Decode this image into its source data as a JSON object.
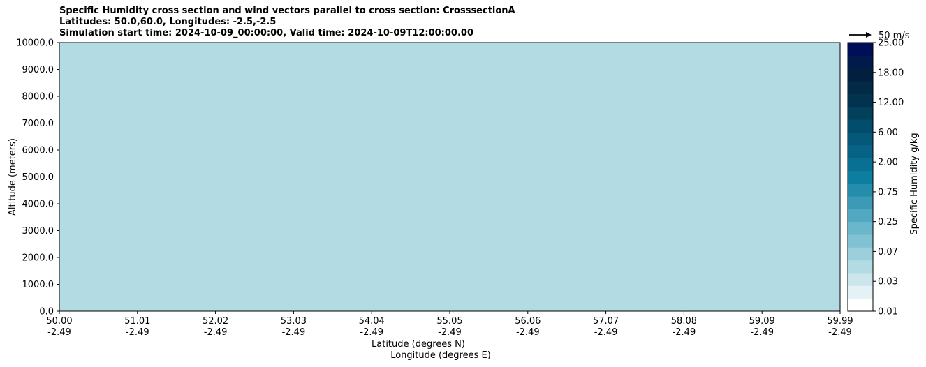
{
  "chart_data": {
    "type": "heatmap",
    "title_lines": [
      "Specific Humidity cross section and wind vectors parallel to cross section: CrosssectionA",
      "Latitudes: 50.0,60.0, Longitudes: -2.5,-2.5",
      "Simulation start time: 2024-10-09_00:00:00, Valid time: 2024-10-09T12:00:00.00"
    ],
    "ylabel": "Altitude (meters)",
    "xlabel_lines": [
      "Latitude (degrees N)",
      "Longitude (degrees E)"
    ],
    "ylim": [
      0,
      10000
    ],
    "xlim": [
      50.0,
      59.99
    ],
    "yticks": [
      0,
      1000,
      2000,
      3000,
      4000,
      5000,
      6000,
      7000,
      8000,
      9000,
      10000
    ],
    "ytick_labels": [
      "0.0",
      "1000.0",
      "2000.0",
      "3000.0",
      "4000.0",
      "5000.0",
      "6000.0",
      "7000.0",
      "8000.0",
      "9000.0",
      "10000.0"
    ],
    "xticks": [
      {
        "lat": "50.00",
        "lon": "-2.49"
      },
      {
        "lat": "51.01",
        "lon": "-2.49"
      },
      {
        "lat": "52.02",
        "lon": "-2.49"
      },
      {
        "lat": "53.03",
        "lon": "-2.49"
      },
      {
        "lat": "54.04",
        "lon": "-2.49"
      },
      {
        "lat": "55.05",
        "lon": "-2.49"
      },
      {
        "lat": "56.06",
        "lon": "-2.49"
      },
      {
        "lat": "57.07",
        "lon": "-2.49"
      },
      {
        "lat": "58.08",
        "lon": "-2.49"
      },
      {
        "lat": "59.09",
        "lon": "-2.49"
      },
      {
        "lat": "59.99",
        "lon": "-2.49"
      }
    ],
    "grid": "horizontal",
    "colorbar": {
      "label": "Specific Humidity g/kg",
      "levels": [
        "0.01",
        "0.03",
        "0.07",
        "0.25",
        "0.75",
        "2.00",
        "6.00",
        "12.00",
        "18.00",
        "25.00"
      ],
      "colors": [
        "#ffffff",
        "#e4f2f5",
        "#cce6ec",
        "#b3dbe4",
        "#9bcfdc",
        "#82c3d3",
        "#6ab6ca",
        "#52a8c0",
        "#3b9bb6",
        "#248dab",
        "#0d7ea0",
        "#077093",
        "#066386",
        "#055879",
        "#034d6c",
        "#02405c",
        "#02334e",
        "#022a46",
        "#021f40",
        "#011a4b",
        "#000e5a"
      ]
    },
    "wind_key": "50 m/s",
    "contour_levels": [
      "0.1",
      "0.2",
      "0.5",
      "1.0",
      "2.0",
      "4.0",
      "8.0"
    ]
  }
}
